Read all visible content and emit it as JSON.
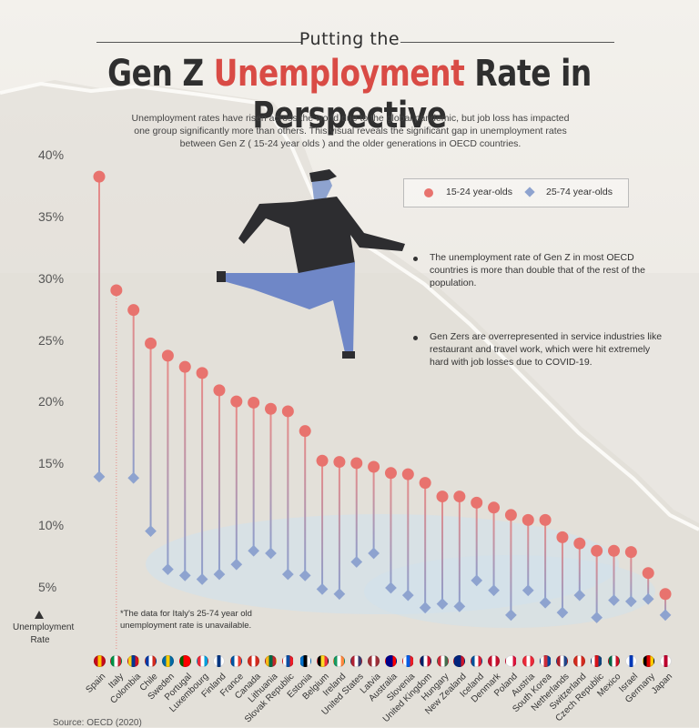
{
  "header": {
    "kicker": "Putting the",
    "title_pre": "Gen Z ",
    "title_accent": "Unemployment",
    "title_post": " Rate in Perspective",
    "subtitle": "Unemployment rates have risen across the world due to the global pandemic, but job loss has impacted one group significantly more than others. This visual reveals the significant gap in unemployment rates between Gen Z ( 15-24 year olds ) and the older generations in OECD countries."
  },
  "legend": {
    "young": "15-24 year-olds",
    "old": "25-74 year-olds"
  },
  "notes": [
    "The unemployment rate of Gen Z in most OECD countries is more than double that of the rest of the population.",
    "Gen Zers are overrepresented in service industries like restaurant and travel work, which were hit extremely hard with job losses due to COVID-19."
  ],
  "footnote": "*The data for Italy's 25-74 year old unemployment rate is unavailable.",
  "source": "Source: OECD (2020)",
  "y_axis_label": "Unemployment Rate",
  "colors": {
    "accent": "#d94b45",
    "young_point": "#e8736e",
    "old_point": "#8ea3cf",
    "stem_top": "#e98a86",
    "stem_bottom": "#8c9fcd"
  },
  "chart_data": {
    "type": "dumbbell",
    "ylim": [
      0,
      40
    ],
    "yticks": [
      "5%",
      "10%",
      "15%",
      "20%",
      "25%",
      "30%",
      "35%",
      "40%"
    ],
    "categories": [
      "Spain",
      "Italy",
      "Colombia",
      "Chile",
      "Sweden",
      "Portugal",
      "Luxembourg",
      "Finland",
      "France",
      "Canada",
      "Lithuania",
      "Slovak Republic",
      "Estonia",
      "Belgium",
      "Ireland",
      "United States",
      "Latvia",
      "Australia",
      "Slovenia",
      "United Kingdom",
      "Hungary",
      "New Zealand",
      "Iceland",
      "Denmark",
      "Poland",
      "Austria",
      "South Korea",
      "Netherlands",
      "Switzerland",
      "Czech Republic",
      "Mexico",
      "Israel",
      "Germany",
      "Japan"
    ],
    "series": [
      {
        "name": "15-24 year-olds",
        "values": [
          38.3,
          29.1,
          27.5,
          24.8,
          23.8,
          22.9,
          22.4,
          21.0,
          20.1,
          20.0,
          19.5,
          19.3,
          17.7,
          15.3,
          15.2,
          15.1,
          14.8,
          14.3,
          14.2,
          13.5,
          12.4,
          12.4,
          11.9,
          11.5,
          10.9,
          10.5,
          10.5,
          9.1,
          8.6,
          8.0,
          8.0,
          7.9,
          6.2,
          4.5
        ]
      },
      {
        "name": "25-74 year-olds",
        "values": [
          14.0,
          null,
          13.9,
          9.6,
          6.5,
          6.0,
          5.7,
          6.1,
          6.9,
          8.0,
          7.8,
          6.1,
          6.0,
          4.9,
          4.5,
          7.1,
          7.8,
          5.0,
          4.4,
          3.4,
          3.7,
          3.5,
          5.6,
          4.8,
          2.8,
          4.8,
          3.8,
          3.0,
          4.4,
          2.6,
          4.0,
          3.9,
          4.1,
          2.8
        ]
      }
    ],
    "flags": [
      [
        "#c60b1e",
        "#ffc400",
        "#c60b1e"
      ],
      [
        "#009246",
        "#ffffff",
        "#ce2b37"
      ],
      [
        "#fcd116",
        "#003893",
        "#ce1126"
      ],
      [
        "#0039a6",
        "#ffffff",
        "#d52b1e"
      ],
      [
        "#006aa7",
        "#fecc00",
        "#006aa7"
      ],
      [
        "#006600",
        "#ff0000",
        "#ff0000"
      ],
      [
        "#ed2939",
        "#ffffff",
        "#00a1de"
      ],
      [
        "#ffffff",
        "#003580",
        "#ffffff"
      ],
      [
        "#0055a4",
        "#ffffff",
        "#ef4135"
      ],
      [
        "#d52b1e",
        "#ffffff",
        "#d52b1e"
      ],
      [
        "#fdb913",
        "#006a44",
        "#c1272d"
      ],
      [
        "#ffffff",
        "#0b4ea2",
        "#ee1c25"
      ],
      [
        "#0072ce",
        "#000000",
        "#ffffff"
      ],
      [
        "#000000",
        "#fdda24",
        "#ef3340"
      ],
      [
        "#169b62",
        "#ffffff",
        "#ff883e"
      ],
      [
        "#b22234",
        "#ffffff",
        "#3c3b6e"
      ],
      [
        "#9e3039",
        "#ffffff",
        "#9e3039"
      ],
      [
        "#00008b",
        "#00008b",
        "#ff0000"
      ],
      [
        "#ffffff",
        "#005ce5",
        "#ed1c24"
      ],
      [
        "#012169",
        "#ffffff",
        "#c8102e"
      ],
      [
        "#ce2939",
        "#ffffff",
        "#477050"
      ],
      [
        "#00247d",
        "#00247d",
        "#cc142b"
      ],
      [
        "#02529c",
        "#ffffff",
        "#dc1e35"
      ],
      [
        "#c8102e",
        "#ffffff",
        "#c8102e"
      ],
      [
        "#ffffff",
        "#ffffff",
        "#dc143c"
      ],
      [
        "#ed2939",
        "#ffffff",
        "#ed2939"
      ],
      [
        "#ffffff",
        "#cd2e3a",
        "#0047a0"
      ],
      [
        "#ae1c28",
        "#ffffff",
        "#21468b"
      ],
      [
        "#d52b1e",
        "#ffffff",
        "#d52b1e"
      ],
      [
        "#ffffff",
        "#d7141a",
        "#11457e"
      ],
      [
        "#006847",
        "#ffffff",
        "#ce1126"
      ],
      [
        "#ffffff",
        "#0038b8",
        "#ffffff"
      ],
      [
        "#000000",
        "#dd0000",
        "#ffce00"
      ],
      [
        "#ffffff",
        "#bc002d",
        "#ffffff"
      ]
    ]
  }
}
